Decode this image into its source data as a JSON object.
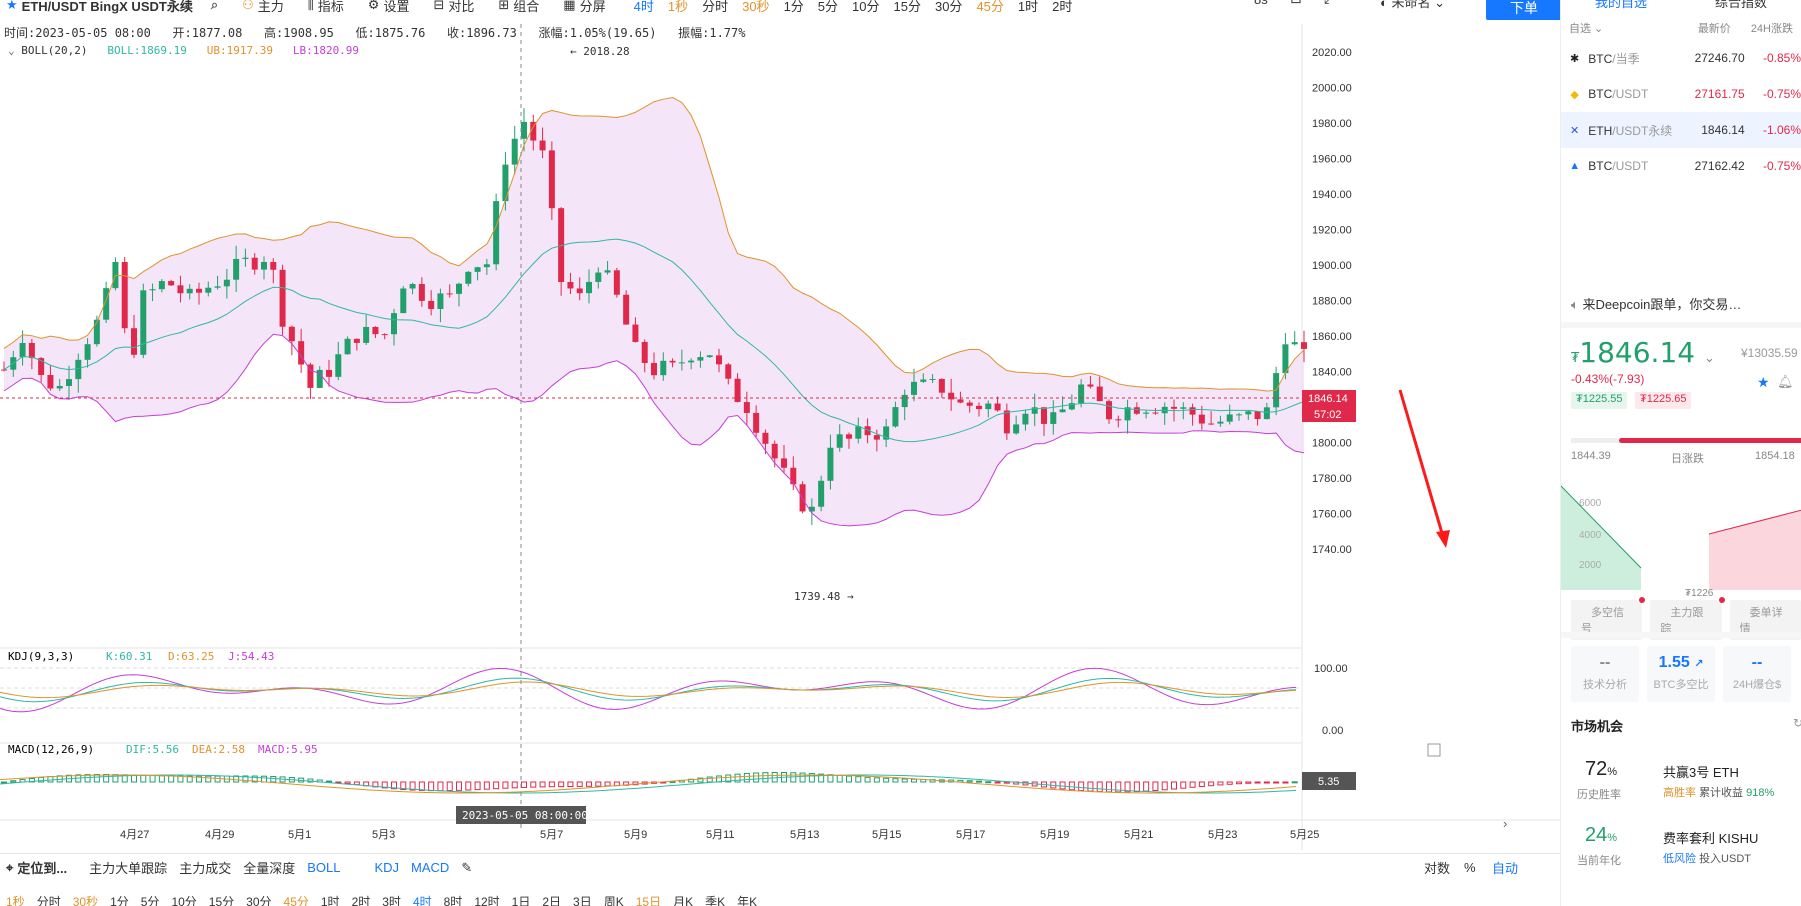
{
  "toolbar": {
    "symbol": "ETH/USDT BingX USDT永续",
    "main_label": "主力",
    "indicator_label": "指标",
    "settings_label": "设置",
    "compare_label": "对比",
    "combine_label": "组合",
    "split_label": "分屏",
    "periods": [
      "4时",
      "1秒",
      "分时",
      "30秒",
      "1分",
      "5分",
      "10分",
      "15分",
      "30分",
      "45分",
      "1时",
      "2时"
    ],
    "active_period": "4时",
    "countdown": "8s",
    "account": "未命名",
    "order_button": "下单"
  },
  "ohlc": {
    "time_label": "时间:2023-05-05 08:00",
    "open": "开:1877.08",
    "high": "高:1908.95",
    "low": "低:1875.76",
    "close": "收:1896.73",
    "change": "涨幅:1.05%(19.65)",
    "amplitude": "振幅:1.77%"
  },
  "boll": {
    "title": "BOLL(20,2)",
    "mid": "BOLL:1869.19",
    "ub": "UB:1917.39",
    "lb": "LB:1820.99"
  },
  "kdj": {
    "title": "KDJ(9,3,3)",
    "k": "K:60.31",
    "d": "D:63.25",
    "j": "J:54.43",
    "ticks": [
      "100.00",
      "0.00"
    ]
  },
  "macd": {
    "title": "MACD(12,26,9)",
    "dif": "DIF:5.56",
    "dea": "DEA:2.58",
    "macd": "MACD:5.95",
    "last_value": "5.35"
  },
  "price_axis": [
    "2020.00",
    "2000.00",
    "1980.00",
    "1960.00",
    "1940.00",
    "1920.00",
    "1900.00",
    "1880.00",
    "1860.00",
    "1840.00",
    "1820.00",
    "1800.00",
    "1780.00",
    "1760.00",
    "1740.00"
  ],
  "current_price_label": "1846.14",
  "countdown_label": "57:02",
  "high_marker": "← 2018.28",
  "low_marker": "1739.48 →",
  "x_axis": [
    "4月27",
    "4月29",
    "5月1",
    "5月3",
    "5月7",
    "5月9",
    "5月11",
    "5月13",
    "5月15",
    "5月17",
    "5月19",
    "5月21",
    "5月23",
    "5月25"
  ],
  "crosshair_label": "2023-05-05 08:00:00",
  "bottom": {
    "locate": "定位到...",
    "links": [
      "主力大单跟踪",
      "主力成交",
      "全量深度",
      "BOLL",
      "KDJ",
      "MACD"
    ],
    "right": [
      "对数",
      "%",
      "自动"
    ],
    "periods": [
      "1秒",
      "分时",
      "30秒",
      "1分",
      "5分",
      "10分",
      "15分",
      "30分",
      "45分",
      "1时",
      "2时",
      "3时",
      "4时",
      "8时",
      "12时",
      "1日",
      "2日",
      "3日",
      "周K",
      "15日",
      "月K",
      "季K",
      "年K"
    ]
  },
  "right_panel": {
    "tabs": [
      "我的自选",
      "综合指数"
    ],
    "list_head": [
      "自选",
      "最新价",
      "24H涨跌"
    ],
    "watchlist": [
      {
        "name": "BTC",
        "quote": "/当季",
        "price": "27246.70",
        "change": "-0.85%",
        "icon": "okx-icon"
      },
      {
        "name": "BTC",
        "quote": "/USDT",
        "price": "27161.75",
        "change": "-0.75%",
        "icon": "binance-icon",
        "price_color": "#e0294a"
      },
      {
        "name": "ETH",
        "quote": "/USDT永续",
        "price": "1846.14",
        "change": "-1.06%",
        "icon": "bingx-icon",
        "selected": true
      },
      {
        "name": "BTC",
        "quote": "/USDT",
        "price": "27162.42",
        "change": "-0.75%",
        "icon": "flame-icon"
      }
    ],
    "notice": "来Deepcoin跟单，你交易…",
    "price": "1846.14",
    "price_prefix": "₮",
    "ref_price": "¥13035.59",
    "change": "-0.43%(-7.93)",
    "tag_green": "₮1225.55",
    "tag_red": "₮1225.65",
    "range_low": "1844.39",
    "range_label": "日涨跌",
    "range_high": "1854.18",
    "depth_ticks": [
      "6000",
      "4000",
      "2000"
    ],
    "depth_label": "₮1226",
    "pills": [
      "多空信号",
      "主力跟踪",
      "委单详情"
    ],
    "stats": [
      {
        "value": "--",
        "label": "技术分析"
      },
      {
        "value": "1.55",
        "label": "BTC多空比"
      },
      {
        "value": "--",
        "label": "24H爆仓$"
      }
    ],
    "market_title": "市场机会",
    "opportunities": [
      {
        "pct": "72",
        "pct_unit": "%",
        "pct_label": "历史胜率",
        "name": "共赢3号 ETH",
        "risk": "高胜率",
        "detail": "累计收益",
        "detail_value": "918%"
      },
      {
        "pct": "24",
        "pct_unit": "%",
        "pct_label": "当前年化",
        "name": "费率套利 KISHU",
        "risk": "低风险",
        "detail": "投入USDT",
        "detail_value": ""
      }
    ]
  }
}
